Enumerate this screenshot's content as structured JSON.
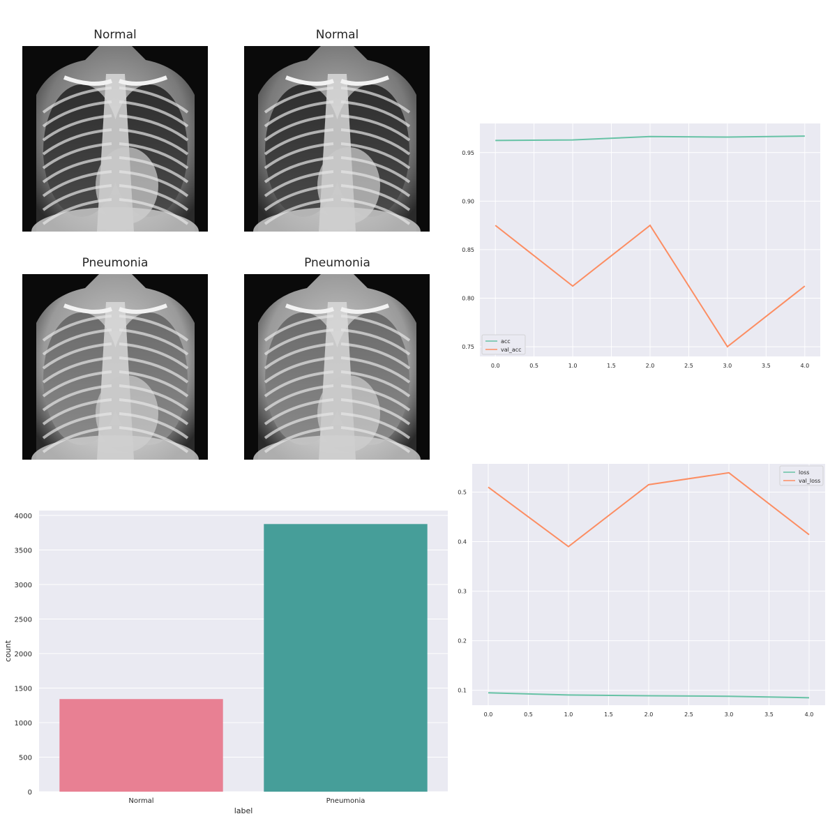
{
  "xrays": [
    {
      "title": "Normal",
      "variant": "normal"
    },
    {
      "title": "Normal",
      "variant": "normal"
    },
    {
      "title": "Pneumonia",
      "variant": "pneumonia"
    },
    {
      "title": "Pneumonia",
      "variant": "pneumonia"
    }
  ],
  "colors": {
    "grid_bg": "#eaeaf2",
    "train_line": "#66c2a5",
    "val_line": "#fc8d62",
    "bar_normal": "#e88093",
    "bar_pneumonia": "#469e99"
  },
  "chart_data": [
    {
      "type": "line",
      "x": [
        0.0,
        1.0,
        2.0,
        3.0,
        4.0
      ],
      "series": [
        {
          "name": "acc",
          "values": [
            0.9625,
            0.963,
            0.9665,
            0.966,
            0.967
          ]
        },
        {
          "name": "val_acc",
          "values": [
            0.875,
            0.8125,
            0.875,
            0.75,
            0.8125
          ]
        }
      ],
      "xlim": [
        -0.2,
        4.2
      ],
      "ylim": [
        0.74,
        0.98
      ],
      "xticks": [
        "0.0",
        "0.5",
        "1.0",
        "1.5",
        "2.0",
        "2.5",
        "3.0",
        "3.5",
        "4.0"
      ],
      "yticks": [
        "0.75",
        "0.80",
        "0.85",
        "0.90",
        "0.95"
      ],
      "legend": "lower-left",
      "grid": true
    },
    {
      "type": "line",
      "x": [
        0.0,
        1.0,
        2.0,
        3.0,
        4.0
      ],
      "series": [
        {
          "name": "loss",
          "values": [
            0.095,
            0.0905,
            0.089,
            0.088,
            0.085
          ]
        },
        {
          "name": "val_loss",
          "values": [
            0.51,
            0.39,
            0.515,
            0.539,
            0.414
          ]
        }
      ],
      "xlim": [
        -0.2,
        4.2
      ],
      "ylim": [
        0.07,
        0.557
      ],
      "xticks": [
        "0.0",
        "0.5",
        "1.0",
        "1.5",
        "2.0",
        "2.5",
        "3.0",
        "3.5",
        "4.0"
      ],
      "yticks": [
        "0.1",
        "0.2",
        "0.3",
        "0.4",
        "0.5"
      ],
      "legend": "upper-right",
      "grid": true
    },
    {
      "type": "bar",
      "categories": [
        "Normal",
        "Pneumonia"
      ],
      "values": [
        1341,
        3875
      ],
      "xlabel": "label",
      "ylabel": "count",
      "ylim": [
        0,
        4070
      ],
      "yticks": [
        "0",
        "500",
        "1000",
        "1500",
        "2000",
        "2500",
        "3000",
        "3500",
        "4000"
      ],
      "grid": true
    }
  ]
}
